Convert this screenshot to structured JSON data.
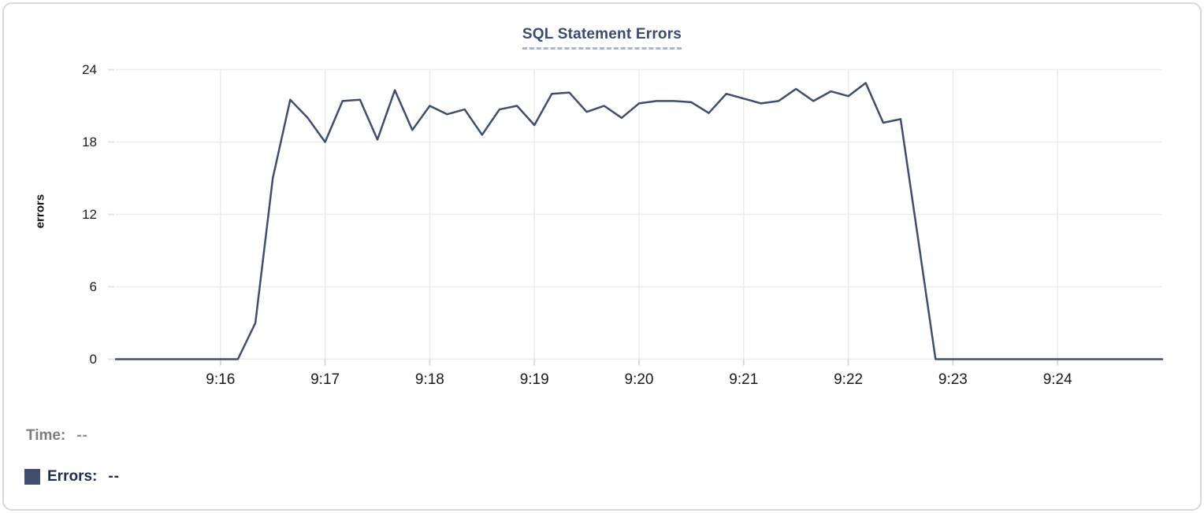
{
  "panel": {
    "title": "SQL Statement Errors"
  },
  "tooltip": {
    "time_label": "Time:",
    "time_value": "--",
    "errors_label": "Errors:",
    "errors_value": "--"
  },
  "colors": {
    "series_line": "#3f4e6e",
    "title_text": "#3a4b6d",
    "title_underline": "#a9b6cc",
    "grid_line": "#ececec",
    "tick_mark": "#d9d9d9",
    "tick_label": "#1a1a1a",
    "time_label_gray": "#7d7d7d",
    "errors_label_navy": "#1d2c52",
    "card_border": "#d8d8d8"
  },
  "chart_data": {
    "type": "line",
    "title": "SQL Statement Errors",
    "xlabel": "",
    "ylabel": "errors",
    "ylim": [
      0,
      24
    ],
    "yticks": [
      0,
      6,
      12,
      18,
      24
    ],
    "xticks": [
      "9:16",
      "9:17",
      "9:18",
      "9:19",
      "9:20",
      "9:21",
      "9:22",
      "9:23",
      "9:24"
    ],
    "x_range": [
      "9:15:00",
      "9:25:00"
    ],
    "grid": true,
    "legend_position": "bottom-left",
    "series": [
      {
        "name": "Errors",
        "color": "#3f4e6e",
        "x": [
          "9:15:00",
          "9:15:10",
          "9:15:20",
          "9:15:30",
          "9:15:40",
          "9:15:50",
          "9:16:00",
          "9:16:10",
          "9:16:20",
          "9:16:30",
          "9:16:40",
          "9:16:50",
          "9:17:00",
          "9:17:10",
          "9:17:20",
          "9:17:30",
          "9:17:40",
          "9:17:50",
          "9:18:00",
          "9:18:10",
          "9:18:20",
          "9:18:30",
          "9:18:40",
          "9:18:50",
          "9:19:00",
          "9:19:10",
          "9:19:20",
          "9:19:30",
          "9:19:40",
          "9:19:50",
          "9:20:00",
          "9:20:10",
          "9:20:20",
          "9:20:30",
          "9:20:40",
          "9:20:50",
          "9:21:00",
          "9:21:10",
          "9:21:20",
          "9:21:30",
          "9:21:40",
          "9:21:50",
          "9:22:00",
          "9:22:10",
          "9:22:20",
          "9:22:30",
          "9:22:40",
          "9:22:50",
          "9:23:00",
          "9:23:10",
          "9:23:20",
          "9:23:30",
          "9:23:40",
          "9:23:50",
          "9:24:00",
          "9:24:10",
          "9:24:20",
          "9:24:30",
          "9:24:40",
          "9:24:50",
          "9:25:00"
        ],
        "values": [
          0,
          0,
          0,
          0,
          0,
          0,
          0,
          0,
          3,
          15,
          21.5,
          20,
          18,
          21.4,
          21.5,
          18.2,
          22.3,
          19,
          21,
          20.3,
          20.7,
          18.6,
          20.7,
          21,
          19.4,
          22,
          22.1,
          20.5,
          21,
          20,
          21.2,
          21.4,
          21.4,
          21.3,
          20.4,
          22,
          21.6,
          21.2,
          21.4,
          22.4,
          21.4,
          22.2,
          21.8,
          22.9,
          19.6,
          19.9,
          10,
          0,
          0,
          0,
          0,
          0,
          0,
          0,
          0,
          0,
          0,
          0,
          0,
          0,
          0
        ]
      }
    ]
  }
}
